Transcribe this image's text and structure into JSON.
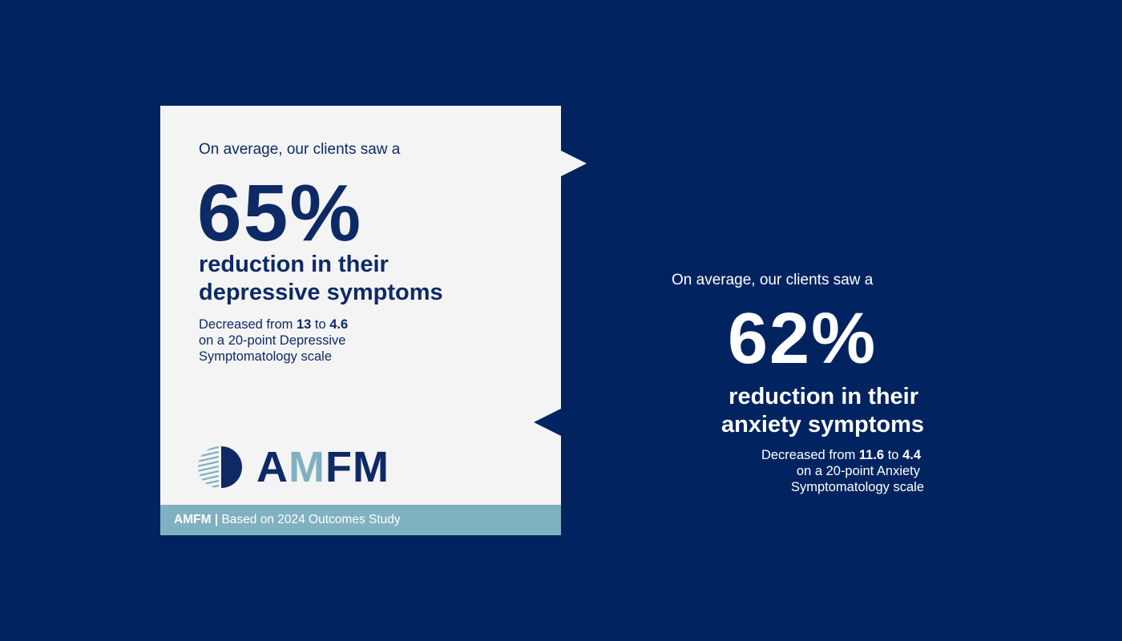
{
  "left_card": {
    "intro": "On average, our clients saw a",
    "percent": "65%",
    "headline_line1": "reduction in their",
    "headline_line2": "depressive symptoms",
    "detail_prefix": "Decreased from ",
    "detail_from": "13",
    "detail_to_word": " to ",
    "detail_to": "4.6",
    "detail_line2": "on a 20-point Depressive",
    "detail_line3": "Symptomatology scale",
    "logo": {
      "part1": "A",
      "part2": "M",
      "part3": "FM"
    },
    "footer_brand": "AMFM",
    "footer_separator": "|",
    "footer_text": "Based on 2024 Outcomes Study"
  },
  "right_panel": {
    "intro": "On average, our clients saw a",
    "percent": "62%",
    "headline_line1": "reduction in their",
    "headline_line2": "anxiety symptoms",
    "detail_prefix": "Decreased from ",
    "detail_from": "11.6",
    "detail_to_word": " to ",
    "detail_to": "4.4",
    "detail_line2": "on a 20-point Anxiety",
    "detail_line3": "Symptomatology scale"
  },
  "colors": {
    "background": "#012460",
    "card": "#f4f4f5",
    "navy_text": "#0e2a66",
    "accent": "#7fb1c1"
  }
}
